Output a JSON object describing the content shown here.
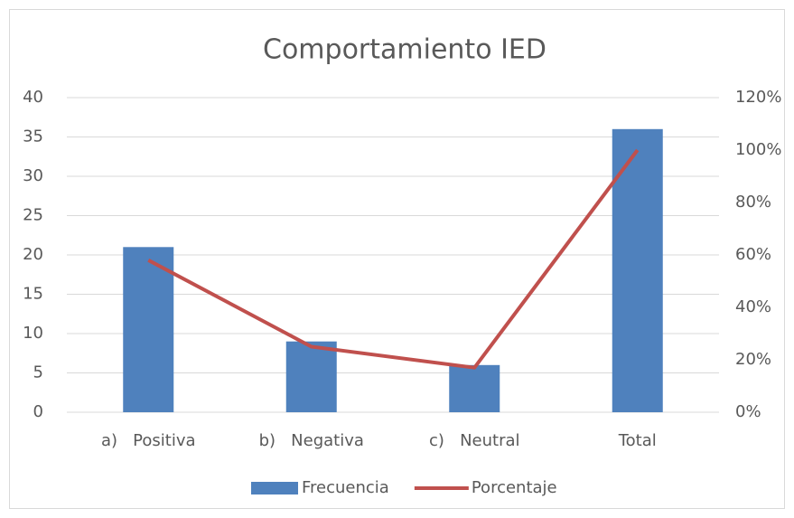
{
  "chart_data": {
    "type": "bar",
    "title": "Comportamiento IED",
    "categories": [
      "a)   Positiva",
      "b)   Negativa",
      "c)   Neutral",
      "Total"
    ],
    "series": [
      {
        "name": "Frecuencia",
        "type": "bar",
        "color": "#4f81bd",
        "values": [
          21,
          9,
          6,
          36
        ]
      },
      {
        "name": "Porcentaje",
        "type": "line",
        "axis": "y2",
        "color": "#c0504d",
        "values": [
          58,
          25,
          17,
          100
        ]
      }
    ],
    "ylim": [
      0,
      40
    ],
    "yticks": [
      0,
      5,
      10,
      15,
      20,
      25,
      30,
      35,
      40
    ],
    "y2lim": [
      0,
      120
    ],
    "y2ticks": [
      {
        "value": 0,
        "label": "0%"
      },
      {
        "value": 20,
        "label": "20%"
      },
      {
        "value": 40,
        "label": "40%"
      },
      {
        "value": 60,
        "label": "60%"
      },
      {
        "value": 80,
        "label": "80%"
      },
      {
        "value": 100,
        "label": "100%"
      },
      {
        "value": 120,
        "label": "120%"
      }
    ],
    "grid": true,
    "legend": "bottom"
  }
}
